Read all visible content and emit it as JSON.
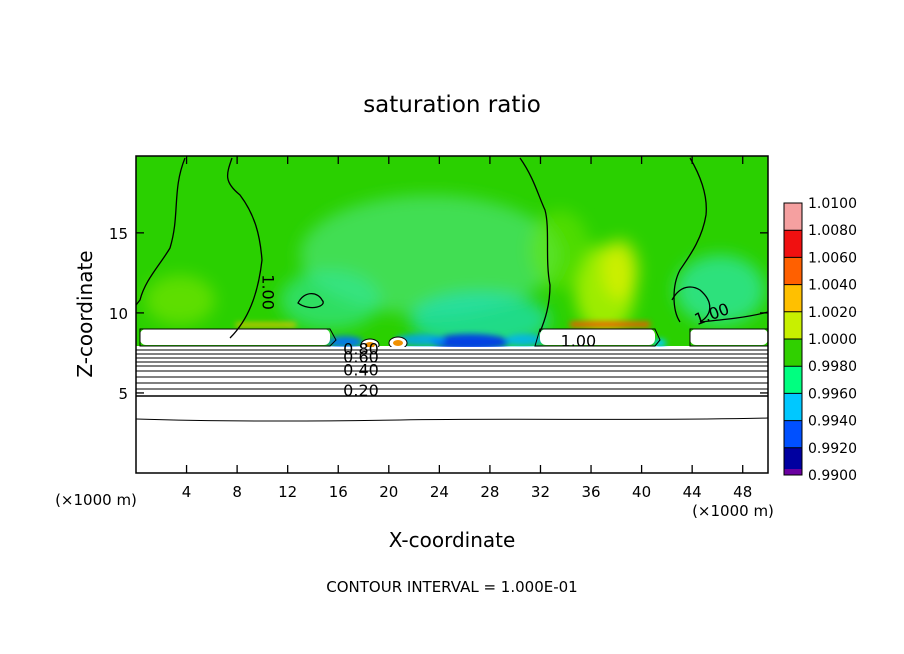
{
  "chart_data": {
    "type": "heatmap",
    "title": "saturation ratio",
    "xlabel": "X-coordinate",
    "ylabel": "Z-coordinate",
    "x_unit_left": "(×1000 m)",
    "x_unit_right": "(×1000 m)",
    "xlim": [
      0,
      50
    ],
    "ylim": [
      0,
      19.8
    ],
    "xticks": [
      4,
      8,
      12,
      16,
      20,
      24,
      28,
      32,
      36,
      40,
      44,
      48
    ],
    "yticks": [
      5,
      10,
      15
    ],
    "footer": "CONTOUR INTERVAL = 1.000E-01",
    "colorbar": {
      "levels": [
        "1.0100",
        "1.0080",
        "1.0060",
        "1.0040",
        "1.0020",
        "1.0000",
        "0.9980",
        "0.9960",
        "0.9940",
        "0.9920",
        "0.9900"
      ],
      "colors": [
        "#f5a0a0",
        "#f01010",
        "#ff6000",
        "#ffc000",
        "#c8f000",
        "#30d000",
        "#00ff80",
        "#00c8ff",
        "#0050ff",
        "#0000a0",
        "#6a00a0"
      ]
    },
    "contour_labels": [
      {
        "text": "1.00",
        "x": 10.0,
        "y": 11.3
      },
      {
        "text": "1.00",
        "x": 45.7,
        "y": 9.6
      },
      {
        "text": "1.00",
        "x": 35.0,
        "y": 7.9
      },
      {
        "text": "0.80",
        "x": 17.8,
        "y": 7.4
      },
      {
        "text": "0.60",
        "x": 17.8,
        "y": 6.9
      },
      {
        "text": "0.40",
        "x": 17.8,
        "y": 6.1
      },
      {
        "text": "0.20",
        "x": 17.8,
        "y": 4.8
      }
    ],
    "grid": false,
    "legend": "right"
  }
}
